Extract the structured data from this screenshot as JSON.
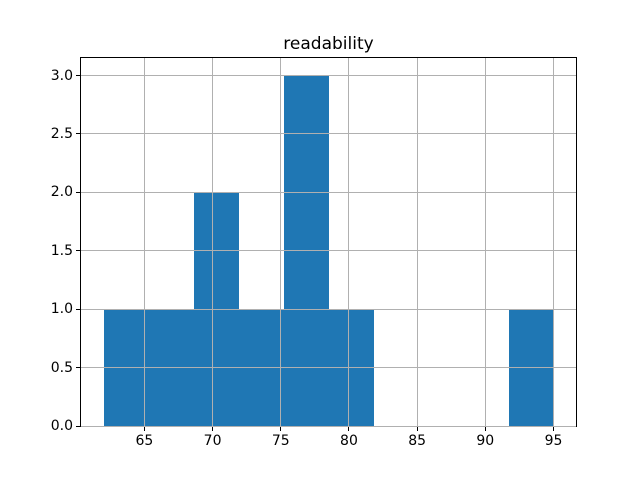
{
  "chart_data": {
    "type": "bar",
    "subtype": "histogram",
    "title": "readability",
    "xlabel": "",
    "ylabel": "",
    "bin_edges": [
      62.0,
      65.3,
      68.6,
      71.9,
      75.2,
      78.5,
      81.8,
      85.1,
      88.4,
      91.7,
      95.0
    ],
    "counts": [
      1,
      1,
      2,
      1,
      3,
      1,
      0,
      0,
      0,
      1
    ],
    "xlim": [
      60.35,
      96.65
    ],
    "ylim": [
      0,
      3.15
    ],
    "xticks": {
      "values": [
        65,
        70,
        75,
        80,
        85,
        90,
        95
      ],
      "labels": [
        "65",
        "70",
        "75",
        "80",
        "85",
        "90",
        "95"
      ]
    },
    "yticks": {
      "values": [
        0.0,
        0.5,
        1.0,
        1.5,
        2.0,
        2.5,
        3.0
      ],
      "labels": [
        "0.0",
        "0.5",
        "1.0",
        "1.5",
        "2.0",
        "2.5",
        "3.0"
      ]
    },
    "grid": true,
    "legend_position": "none",
    "colors": {
      "bar": "#1f77b4",
      "grid": "#b0b0b0",
      "spine": "#000000",
      "background": "#ffffff",
      "text": "#000000"
    }
  }
}
